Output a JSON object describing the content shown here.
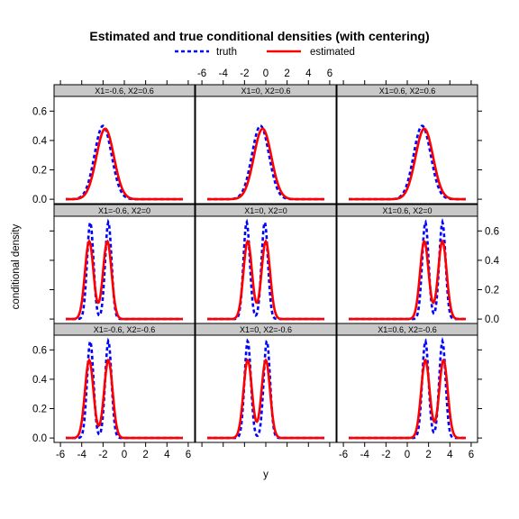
{
  "chart_data": {
    "type": "line",
    "title": "Estimated and true conditional densities (with centering)",
    "xlabel": "y",
    "ylabel": "conditional density",
    "xlim": [
      -6.6,
      6.6
    ],
    "ylim": [
      -0.03,
      0.7
    ],
    "x_ticks": [
      -6,
      -4,
      -2,
      0,
      2,
      4,
      6
    ],
    "y_ticks": [
      0.0,
      0.2,
      0.4,
      0.6
    ],
    "y_tick_labels": [
      "0.0",
      "0.2",
      "0.4",
      "0.6"
    ],
    "grid": false,
    "legend": {
      "position": "top",
      "entries": [
        {
          "name": "truth",
          "color": "#0000ff",
          "style": "dashed"
        },
        {
          "name": "estimated",
          "color": "#ff0000",
          "style": "solid"
        }
      ]
    },
    "strip_color": "#c8c8c8",
    "panels": [
      {
        "label": "X1=-0.6, X2=0.6",
        "row": 0,
        "col": 0,
        "truth": {
          "centers": [
            -2.0
          ],
          "sd": 0.8,
          "peak": 0.5
        },
        "estimated": {
          "centers": [
            -1.8
          ],
          "sd": 0.82,
          "peak": 0.48
        }
      },
      {
        "label": "X1=0, X2=0.6",
        "row": 0,
        "col": 1,
        "truth": {
          "centers": [
            -0.5
          ],
          "sd": 0.8,
          "peak": 0.5
        },
        "estimated": {
          "centers": [
            -0.3
          ],
          "sd": 0.82,
          "peak": 0.48
        }
      },
      {
        "label": "X1=0.6, X2=0.6",
        "row": 0,
        "col": 2,
        "truth": {
          "centers": [
            1.4
          ],
          "sd": 0.8,
          "peak": 0.5
        },
        "estimated": {
          "centers": [
            1.6
          ],
          "sd": 0.82,
          "peak": 0.48
        }
      },
      {
        "label": "X1=-0.6, X2=0",
        "row": 1,
        "col": 0,
        "truth": {
          "centers": [
            -3.2,
            -1.5
          ],
          "sd": 0.3,
          "peak": 0.66
        },
        "estimated": {
          "centers": [
            -3.3,
            -1.6
          ],
          "sd": 0.4,
          "peak": 0.53
        }
      },
      {
        "label": "X1=0, X2=0",
        "row": 1,
        "col": 1,
        "truth": {
          "centers": [
            -1.8,
            -0.1
          ],
          "sd": 0.3,
          "peak": 0.66
        },
        "estimated": {
          "centers": [
            -1.7,
            0.0
          ],
          "sd": 0.4,
          "peak": 0.53
        }
      },
      {
        "label": "X1=0.6, X2=0",
        "row": 1,
        "col": 2,
        "truth": {
          "centers": [
            1.7,
            3.3
          ],
          "sd": 0.3,
          "peak": 0.66
        },
        "estimated": {
          "centers": [
            1.6,
            3.3
          ],
          "sd": 0.4,
          "peak": 0.53
        }
      },
      {
        "label": "X1=-0.6, X2=-0.6",
        "row": 2,
        "col": 0,
        "truth": {
          "centers": [
            -3.2,
            -1.5
          ],
          "sd": 0.3,
          "peak": 0.66
        },
        "estimated": {
          "centers": [
            -3.3,
            -1.5
          ],
          "sd": 0.4,
          "peak": 0.53
        }
      },
      {
        "label": "X1=0, X2=-0.6",
        "row": 2,
        "col": 1,
        "truth": {
          "centers": [
            -1.7,
            0.1
          ],
          "sd": 0.3,
          "peak": 0.66
        },
        "estimated": {
          "centers": [
            -1.7,
            0.0
          ],
          "sd": 0.4,
          "peak": 0.53
        }
      },
      {
        "label": "X1=0.6, X2=-0.6",
        "row": 2,
        "col": 2,
        "truth": {
          "centers": [
            1.7,
            3.3
          ],
          "sd": 0.3,
          "peak": 0.66
        },
        "estimated": {
          "centers": [
            1.7,
            3.4
          ],
          "sd": 0.4,
          "peak": 0.53
        }
      }
    ]
  }
}
